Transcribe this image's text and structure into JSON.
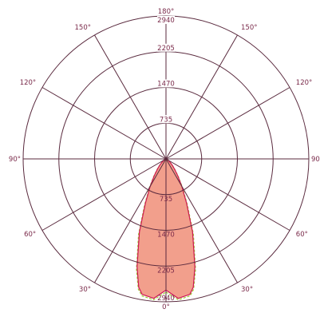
{
  "chart_data": {
    "type": "polar",
    "title": "",
    "radial_max": 2940,
    "radial_ticks": [
      735,
      1470,
      2205,
      2940
    ],
    "angle_labels": [
      {
        "angle": 0,
        "label": "0°"
      },
      {
        "angle": 30,
        "label": "30°"
      },
      {
        "angle": 60,
        "label": "60°"
      },
      {
        "angle": 90,
        "label": "90°"
      },
      {
        "angle": 120,
        "label": "120°"
      },
      {
        "angle": 150,
        "label": "150°"
      },
      {
        "angle": 180,
        "label": "180°"
      },
      {
        "angle": -150,
        "label": "150°"
      },
      {
        "angle": -120,
        "label": "120°"
      },
      {
        "angle": -90,
        "label": "90°"
      },
      {
        "angle": -60,
        "label": "60°"
      },
      {
        "angle": -30,
        "label": "30°"
      }
    ],
    "series": [
      {
        "color": "#d01855",
        "angles": [
          0,
          5,
          10,
          12,
          15,
          20,
          25,
          30,
          35,
          40,
          45,
          50,
          60,
          70,
          90
        ],
        "values": [
          2700,
          2880,
          2830,
          2700,
          2300,
          1600,
          1000,
          650,
          420,
          270,
          180,
          110,
          40,
          10,
          0
        ]
      },
      {
        "color": "#9bd12e",
        "angles": [
          0,
          5,
          10,
          12,
          15,
          20,
          25,
          30,
          35,
          40,
          45,
          50,
          60,
          70,
          90
        ],
        "values": [
          2740,
          2910,
          2860,
          2740,
          2350,
          1650,
          1040,
          680,
          440,
          285,
          190,
          115,
          42,
          11,
          0
        ]
      }
    ]
  }
}
